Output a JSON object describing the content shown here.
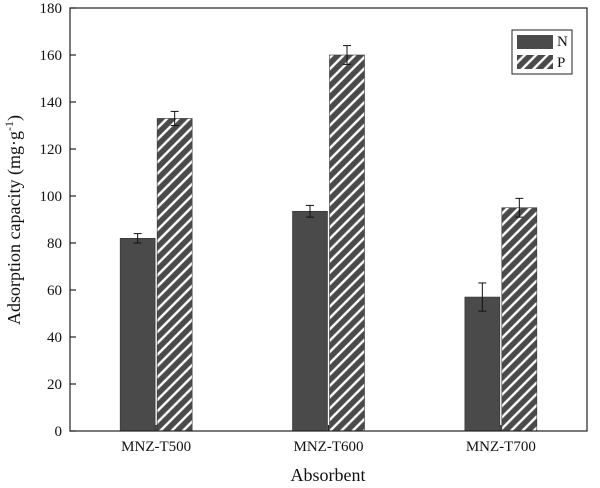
{
  "chart_data": {
    "type": "bar",
    "title": "",
    "xlabel": "Absorbent",
    "ylabel": "Adsorption capacity (mg·g",
    "ylabel_sup": "-1",
    "ylabel_close": ")",
    "categories": [
      "MNZ-T500",
      "MNZ-T600",
      "MNZ-T700"
    ],
    "ylim": [
      0,
      180
    ],
    "yticks": [
      0,
      20,
      40,
      60,
      80,
      100,
      120,
      140,
      160,
      180
    ],
    "series": [
      {
        "name": "N",
        "values": [
          82,
          93.5,
          57
        ],
        "errors": [
          2,
          2.5,
          6
        ],
        "fill": "solid",
        "color": "#4a4a4a"
      },
      {
        "name": "P",
        "values": [
          133,
          160,
          95
        ],
        "errors": [
          3,
          4,
          4
        ],
        "fill": "hatched",
        "color": "#4a4a4a"
      }
    ],
    "legend_position": "top-right",
    "grid": false
  }
}
